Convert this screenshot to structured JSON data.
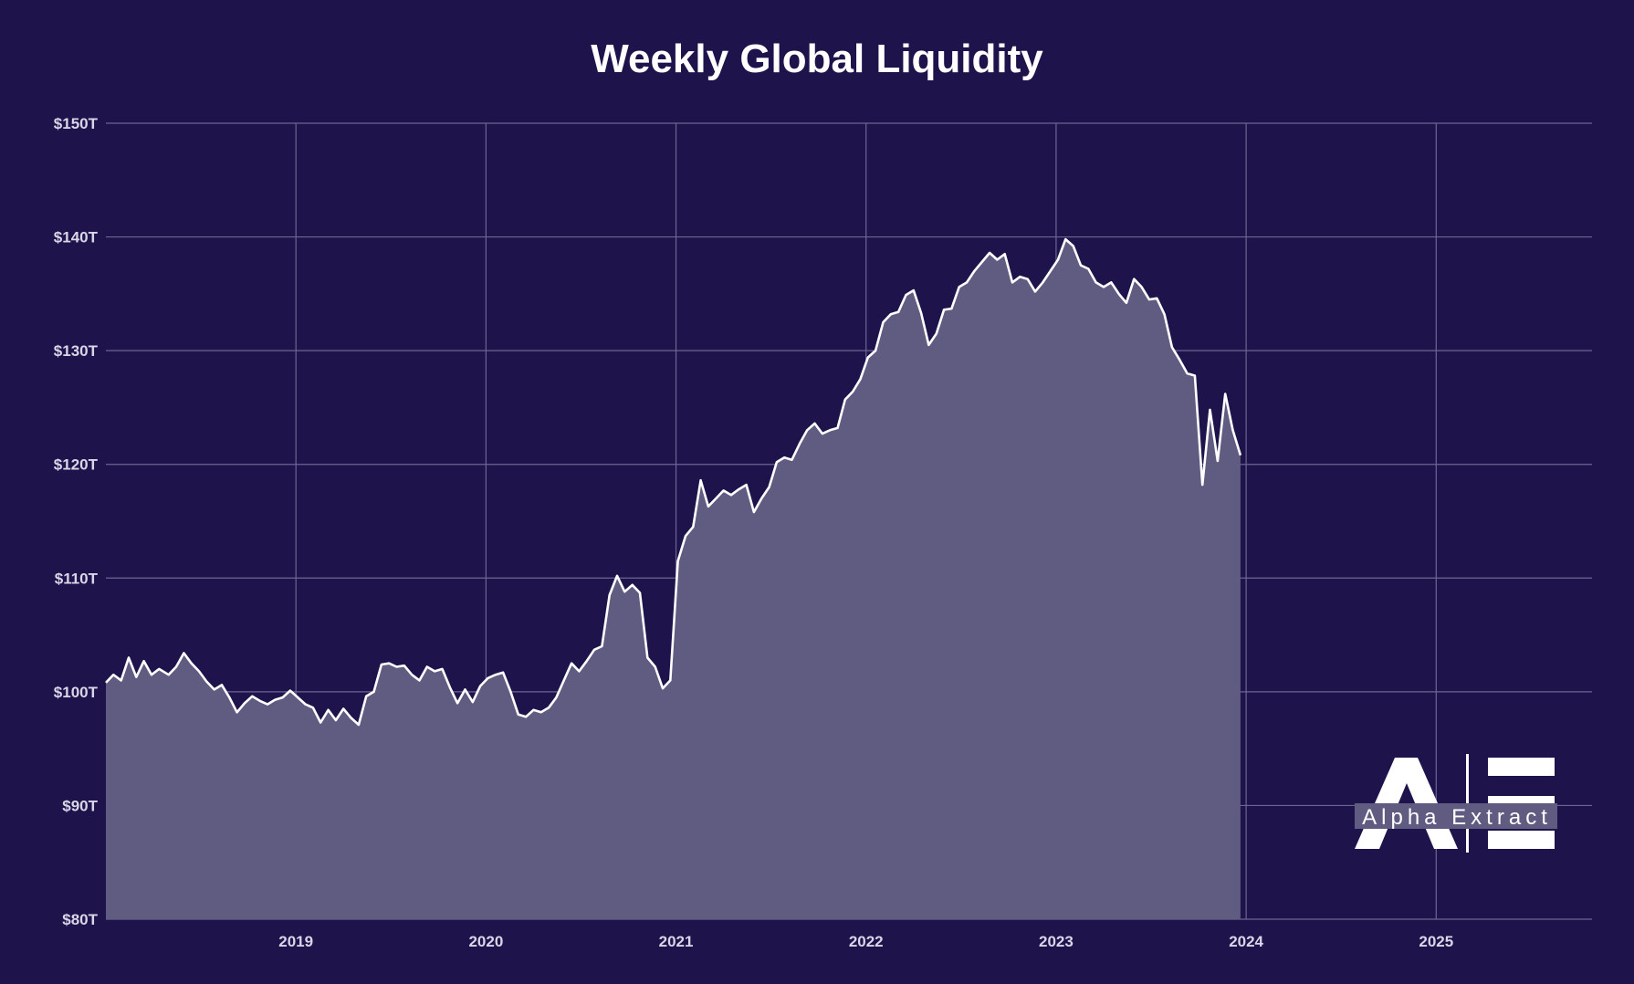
{
  "chart_data": {
    "type": "area",
    "title": "Weekly Global Liquidity",
    "xlabel": "",
    "ylabel": "",
    "x_unit": "year",
    "xlim": [
      2018.0,
      2025.82
    ],
    "ylim": [
      80,
      150
    ],
    "y_ticks": [
      80,
      90,
      100,
      110,
      120,
      130,
      140,
      150
    ],
    "y_tick_labels": [
      "$80T",
      "$90T",
      "$100T",
      "$110T",
      "$120T",
      "$130T",
      "$140T",
      "$150T"
    ],
    "x_ticks": [
      2019,
      2020,
      2021,
      2022,
      2023,
      2024,
      2025
    ],
    "x_tick_labels": [
      "2019",
      "2020",
      "2021",
      "2022",
      "2023",
      "2024",
      "2025"
    ],
    "grid": true,
    "legend": "none",
    "series": [
      {
        "name": "Weekly Global Liquidity ($T)",
        "color": "#ffffff",
        "fill": "#605b80",
        "points": [
          [
            2018.0,
            100.8
          ],
          [
            2018.04,
            101.5
          ],
          [
            2018.08,
            101.0
          ],
          [
            2018.12,
            103.0
          ],
          [
            2018.16,
            101.3
          ],
          [
            2018.2,
            102.7
          ],
          [
            2018.24,
            101.5
          ],
          [
            2018.28,
            102.0
          ],
          [
            2018.33,
            101.5
          ],
          [
            2018.37,
            102.2
          ],
          [
            2018.41,
            103.4
          ],
          [
            2018.45,
            102.5
          ],
          [
            2018.49,
            101.8
          ],
          [
            2018.53,
            100.9
          ],
          [
            2018.57,
            100.2
          ],
          [
            2018.61,
            100.6
          ],
          [
            2018.65,
            99.5
          ],
          [
            2018.69,
            98.2
          ],
          [
            2018.73,
            99.0
          ],
          [
            2018.77,
            99.6
          ],
          [
            2018.81,
            99.2
          ],
          [
            2018.85,
            98.9
          ],
          [
            2018.89,
            99.3
          ],
          [
            2018.93,
            99.5
          ],
          [
            2018.97,
            100.1
          ],
          [
            2019.01,
            99.5
          ],
          [
            2019.05,
            98.9
          ],
          [
            2019.09,
            98.6
          ],
          [
            2019.13,
            97.3
          ],
          [
            2019.17,
            98.4
          ],
          [
            2019.21,
            97.5
          ],
          [
            2019.25,
            98.5
          ],
          [
            2019.29,
            97.7
          ],
          [
            2019.33,
            97.1
          ],
          [
            2019.37,
            99.6
          ],
          [
            2019.41,
            100.0
          ],
          [
            2019.45,
            102.4
          ],
          [
            2019.49,
            102.5
          ],
          [
            2019.53,
            102.2
          ],
          [
            2019.57,
            102.3
          ],
          [
            2019.61,
            101.5
          ],
          [
            2019.65,
            101.0
          ],
          [
            2019.69,
            102.2
          ],
          [
            2019.73,
            101.8
          ],
          [
            2019.77,
            102.0
          ],
          [
            2019.81,
            100.4
          ],
          [
            2019.85,
            99.0
          ],
          [
            2019.89,
            100.2
          ],
          [
            2019.93,
            99.1
          ],
          [
            2019.97,
            100.5
          ],
          [
            2020.01,
            101.2
          ],
          [
            2020.05,
            101.5
          ],
          [
            2020.09,
            101.7
          ],
          [
            2020.13,
            100.0
          ],
          [
            2020.17,
            98.0
          ],
          [
            2020.21,
            97.8
          ],
          [
            2020.25,
            98.4
          ],
          [
            2020.29,
            98.2
          ],
          [
            2020.33,
            98.6
          ],
          [
            2020.37,
            99.5
          ],
          [
            2020.41,
            101.0
          ],
          [
            2020.45,
            102.5
          ],
          [
            2020.49,
            101.8
          ],
          [
            2020.53,
            102.7
          ],
          [
            2020.57,
            103.7
          ],
          [
            2020.61,
            104.0
          ],
          [
            2020.65,
            108.5
          ],
          [
            2020.69,
            110.2
          ],
          [
            2020.73,
            108.8
          ],
          [
            2020.77,
            109.4
          ],
          [
            2020.81,
            108.7
          ],
          [
            2020.85,
            103.0
          ],
          [
            2020.89,
            102.2
          ],
          [
            2020.93,
            100.3
          ],
          [
            2020.97,
            101.0
          ],
          [
            2021.01,
            111.5
          ],
          [
            2021.05,
            113.7
          ],
          [
            2021.09,
            114.5
          ],
          [
            2021.13,
            118.6
          ],
          [
            2021.17,
            116.3
          ],
          [
            2021.21,
            117.0
          ],
          [
            2021.25,
            117.7
          ],
          [
            2021.29,
            117.3
          ],
          [
            2021.33,
            117.8
          ],
          [
            2021.37,
            118.2
          ],
          [
            2021.41,
            115.8
          ],
          [
            2021.45,
            117.0
          ],
          [
            2021.49,
            118.0
          ],
          [
            2021.53,
            120.2
          ],
          [
            2021.57,
            120.6
          ],
          [
            2021.61,
            120.4
          ],
          [
            2021.65,
            121.8
          ],
          [
            2021.69,
            123.0
          ],
          [
            2021.73,
            123.6
          ],
          [
            2021.77,
            122.7
          ],
          [
            2021.81,
            123.0
          ],
          [
            2021.85,
            123.2
          ],
          [
            2021.89,
            125.7
          ],
          [
            2021.93,
            126.4
          ],
          [
            2021.97,
            127.5
          ],
          [
            2022.01,
            129.4
          ],
          [
            2022.05,
            130.0
          ],
          [
            2022.09,
            132.5
          ],
          [
            2022.13,
            133.2
          ],
          [
            2022.17,
            133.4
          ],
          [
            2022.21,
            134.9
          ],
          [
            2022.25,
            135.3
          ],
          [
            2022.29,
            133.3
          ],
          [
            2022.33,
            130.5
          ],
          [
            2022.37,
            131.5
          ],
          [
            2022.41,
            133.6
          ],
          [
            2022.45,
            133.7
          ],
          [
            2022.49,
            135.6
          ],
          [
            2022.53,
            136.0
          ],
          [
            2022.57,
            137.0
          ],
          [
            2022.61,
            137.8
          ],
          [
            2022.65,
            138.6
          ],
          [
            2022.69,
            138.0
          ],
          [
            2022.73,
            138.5
          ],
          [
            2022.77,
            136.0
          ],
          [
            2022.81,
            136.5
          ],
          [
            2022.85,
            136.3
          ],
          [
            2022.89,
            135.2
          ],
          [
            2022.93,
            136.0
          ],
          [
            2022.97,
            137.0
          ],
          [
            2023.01,
            138.0
          ],
          [
            2023.05,
            139.8
          ],
          [
            2023.09,
            139.2
          ],
          [
            2023.13,
            137.5
          ],
          [
            2023.17,
            137.2
          ],
          [
            2023.21,
            136.0
          ],
          [
            2023.25,
            135.6
          ],
          [
            2023.29,
            136.0
          ],
          [
            2023.33,
            135.0
          ],
          [
            2023.37,
            134.2
          ],
          [
            2023.41,
            136.3
          ],
          [
            2023.45,
            135.6
          ],
          [
            2023.49,
            134.5
          ],
          [
            2023.53,
            134.6
          ],
          [
            2023.57,
            133.2
          ],
          [
            2023.61,
            130.3
          ],
          [
            2023.65,
            129.2
          ],
          [
            2023.69,
            128.0
          ],
          [
            2023.73,
            127.8
          ],
          [
            2023.77,
            118.2
          ],
          [
            2023.81,
            124.8
          ],
          [
            2023.85,
            120.3
          ],
          [
            2023.89,
            126.2
          ],
          [
            2023.93,
            123.0
          ],
          [
            2023.97,
            120.8
          ]
        ]
      }
    ],
    "annotations": [
      {
        "kind": "logo",
        "text": "Alpha Extract",
        "monogram": "AE",
        "placement": "bottom-right"
      }
    ]
  }
}
